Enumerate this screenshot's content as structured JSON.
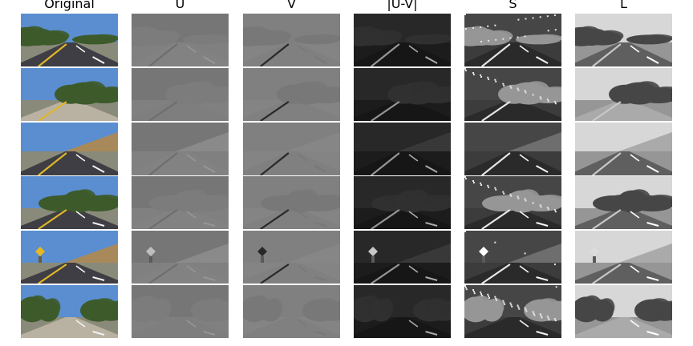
{
  "columns": [
    {
      "key": "original",
      "title": "Original"
    },
    {
      "key": "u",
      "title": "U"
    },
    {
      "key": "v",
      "title": "V"
    },
    {
      "key": "uv",
      "title": "|U-V|"
    },
    {
      "key": "s",
      "title": "S"
    },
    {
      "key": "l",
      "title": "L"
    }
  ],
  "rows": [
    {
      "key": "row-1"
    },
    {
      "key": "row-2"
    },
    {
      "key": "row-3"
    },
    {
      "key": "row-4"
    },
    {
      "key": "row-5"
    },
    {
      "key": "row-6"
    }
  ],
  "colors": {
    "sky": "#5a8ed0",
    "road_dark": "#3e3e44",
    "lane_yellow": "#e0b62a",
    "lane_white": "#f2f2f2",
    "foliage": "#3d5a2a",
    "hill_dry": "#a8895a"
  }
}
